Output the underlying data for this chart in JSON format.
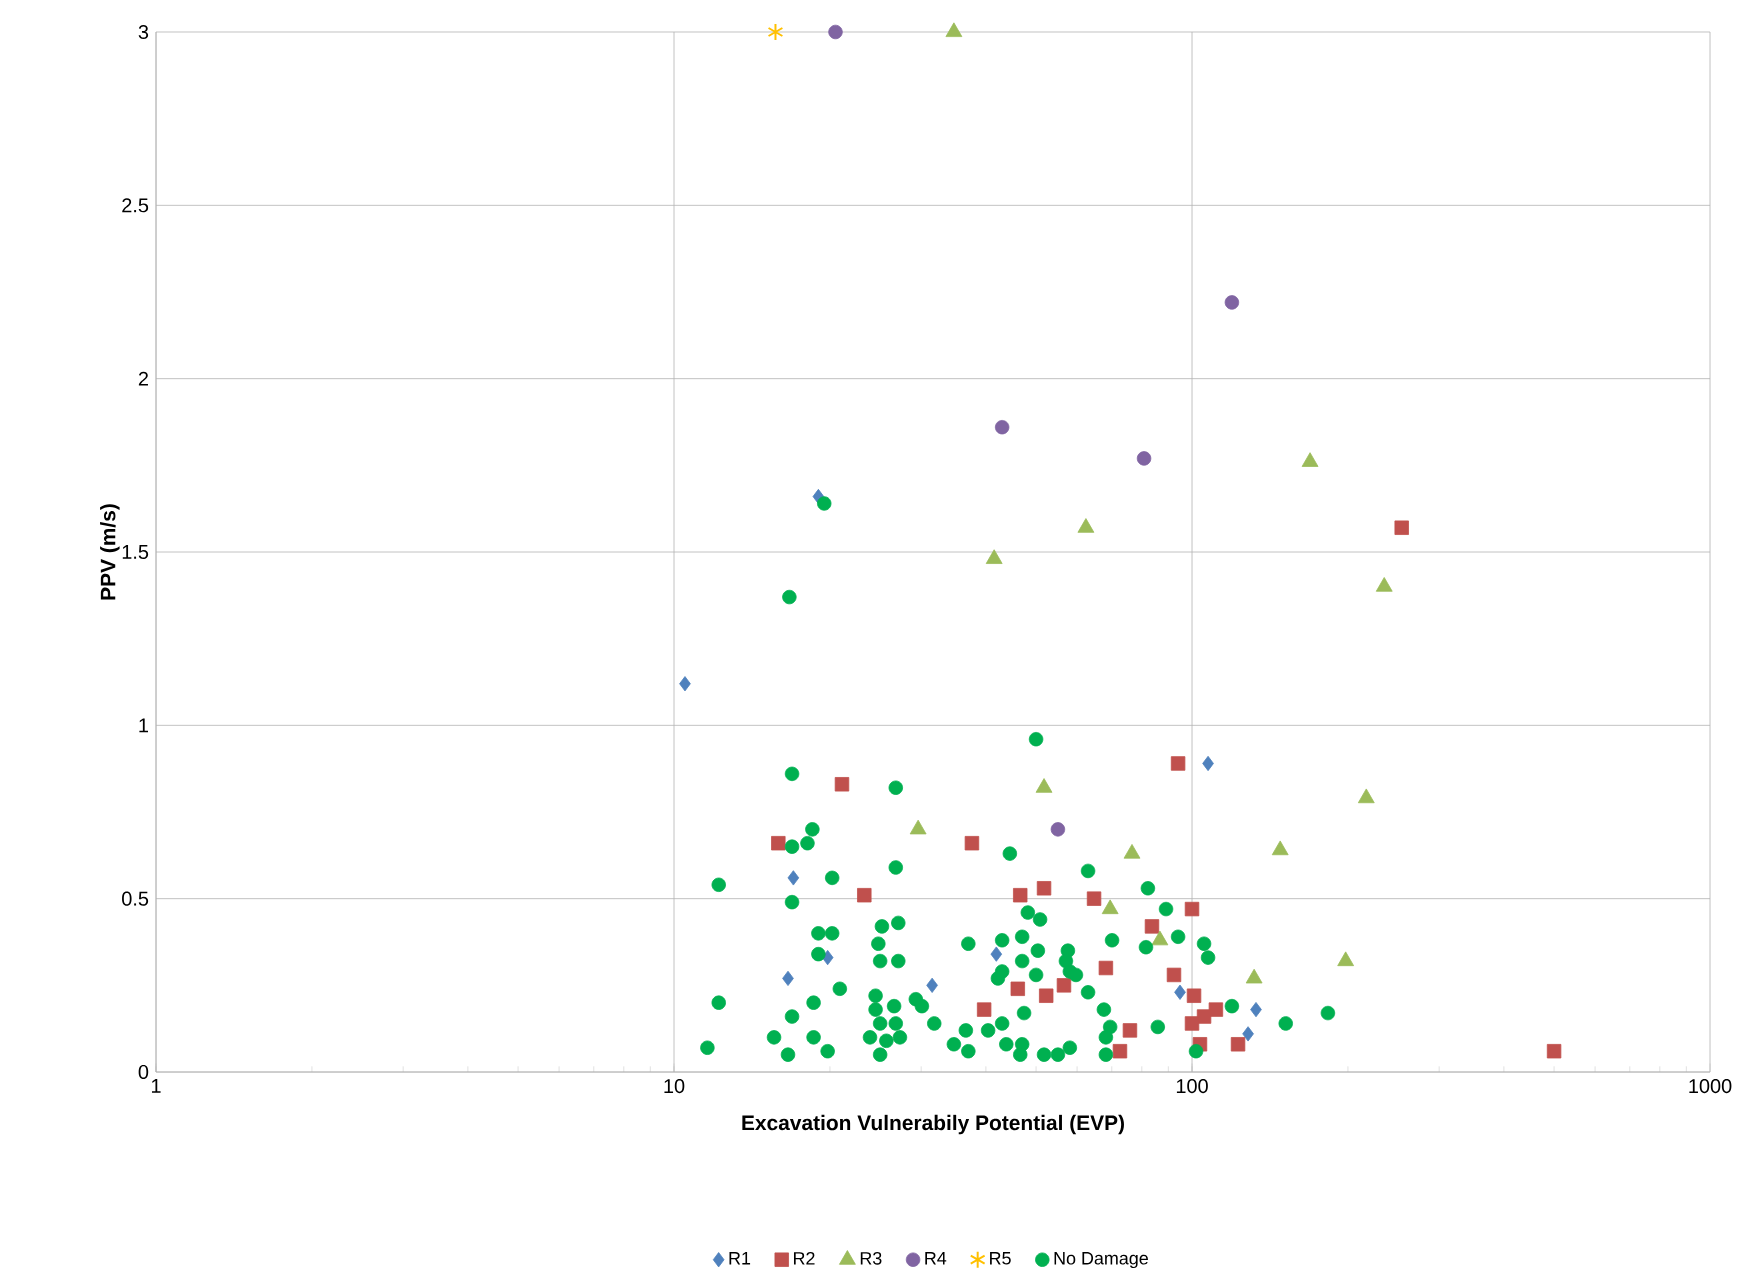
{
  "chart_data": {
    "type": "scatter",
    "xlabel": "Excavation Vulnerabily Potential (EVP)",
    "ylabel": "PPV (m/s)",
    "log": "x",
    "grid": true,
    "legend": "bottom",
    "xlim": [
      1,
      1000
    ],
    "xticks": [
      1,
      10,
      100,
      1000
    ],
    "ylim": [
      0,
      3
    ],
    "yticks": [
      0,
      0.5,
      1,
      1.5,
      2,
      2.5,
      3
    ],
    "series": [
      {
        "name": "R1",
        "color": "#4f81bd",
        "marker": "diamond",
        "x": [
          10.5,
          19.0,
          17.0,
          19.8,
          41.9,
          16.6,
          31.5,
          107.4,
          94.8,
          132.9,
          128.3
        ],
        "values": [
          1.12,
          1.66,
          0.56,
          0.33,
          0.34,
          0.27,
          0.25,
          0.89,
          0.23,
          0.18,
          0.11
        ]
      },
      {
        "name": "R2",
        "color": "#c0504d",
        "marker": "square",
        "x": [
          21.1,
          15.9,
          37.6,
          23.3,
          46.6,
          51.8,
          46.1,
          52.3,
          39.7,
          94.0,
          254,
          64.7,
          100,
          83.7,
          68.2,
          92.3,
          56.6,
          100.9,
          111.2,
          105.5,
          100,
          75.9,
          72.6,
          103.6,
          122.7,
          500
        ],
        "values": [
          0.83,
          0.66,
          0.66,
          0.51,
          0.51,
          0.53,
          0.24,
          0.22,
          0.18,
          0.89,
          1.57,
          0.5,
          0.47,
          0.42,
          0.3,
          0.28,
          0.25,
          0.22,
          0.18,
          0.16,
          0.14,
          0.12,
          0.06,
          0.08,
          0.08,
          0.06
        ]
      },
      {
        "name": "R3",
        "color": "#9bbb59",
        "marker": "triangle",
        "x": [
          34.7,
          169,
          62.4,
          41.5,
          235,
          51.8,
          217,
          29.6,
          76.6,
          148,
          69.5,
          86.7,
          198,
          131.8
        ],
        "values": [
          3.0,
          1.76,
          1.57,
          1.48,
          1.4,
          0.82,
          0.79,
          0.7,
          0.63,
          0.64,
          0.47,
          0.38,
          0.32,
          0.27
        ]
      },
      {
        "name": "R4",
        "color": "#8064a2",
        "marker": "circle",
        "x": [
          20.5,
          119.4,
          43.0,
          80.8,
          55.1
        ],
        "values": [
          3.0,
          2.22,
          1.86,
          1.77,
          0.7
        ]
      },
      {
        "name": "R5",
        "color": "#ffc000",
        "marker": "cross",
        "x": [
          15.7
        ],
        "values": [
          3.0
        ]
      },
      {
        "name": "No Damage",
        "color": "#00b050",
        "marker": "circle",
        "x": [
          19.5,
          16.7,
          50.0,
          16.9,
          26.8,
          18.5,
          18.1,
          16.9,
          44.5,
          12.2,
          20.2,
          26.8,
          16.9,
          48.2,
          50.9,
          19.0,
          20.2,
          25.2,
          27.1,
          24.8,
          25.0,
          27.1,
          19.0,
          37.0,
          43.0,
          47.0,
          50.4,
          47.0,
          43.0,
          50.0,
          42.2,
          20.9,
          18.6,
          12.2,
          24.5,
          29.3,
          30.1,
          24.5,
          26.6,
          25.0,
          26.8,
          23.9,
          25.7,
          27.3,
          25.0,
          31.8,
          16.9,
          15.6,
          18.6,
          19.8,
          16.6,
          11.6,
          36.6,
          34.7,
          37.0,
          40.4,
          43.0,
          43.8,
          47.0,
          47.4,
          51.8,
          55.1,
          46.6,
          63.0,
          82.2,
          89.1,
          94.0,
          105.5,
          107.4,
          70.1,
          81.5,
          57.6,
          57.1,
          58.1,
          59.7,
          63.0,
          67.6,
          119.4,
          151.7,
          183,
          85.9,
          69.5,
          68.2,
          68.2,
          101.8,
          58.1
        ],
        "values": [
          1.64,
          1.37,
          0.96,
          0.86,
          0.82,
          0.7,
          0.66,
          0.65,
          0.63,
          0.54,
          0.56,
          0.59,
          0.49,
          0.46,
          0.44,
          0.4,
          0.4,
          0.42,
          0.43,
          0.37,
          0.32,
          0.32,
          0.34,
          0.37,
          0.38,
          0.39,
          0.35,
          0.32,
          0.29,
          0.28,
          0.27,
          0.24,
          0.2,
          0.2,
          0.22,
          0.21,
          0.19,
          0.18,
          0.19,
          0.14,
          0.14,
          0.1,
          0.09,
          0.1,
          0.05,
          0.14,
          0.16,
          0.1,
          0.1,
          0.06,
          0.05,
          0.07,
          0.12,
          0.08,
          0.06,
          0.12,
          0.14,
          0.08,
          0.08,
          0.17,
          0.05,
          0.05,
          0.05,
          0.58,
          0.53,
          0.47,
          0.39,
          0.37,
          0.33,
          0.38,
          0.36,
          0.35,
          0.32,
          0.29,
          0.28,
          0.23,
          0.18,
          0.19,
          0.14,
          0.17,
          0.13,
          0.13,
          0.1,
          0.05,
          0.06,
          0.07
        ]
      }
    ]
  }
}
